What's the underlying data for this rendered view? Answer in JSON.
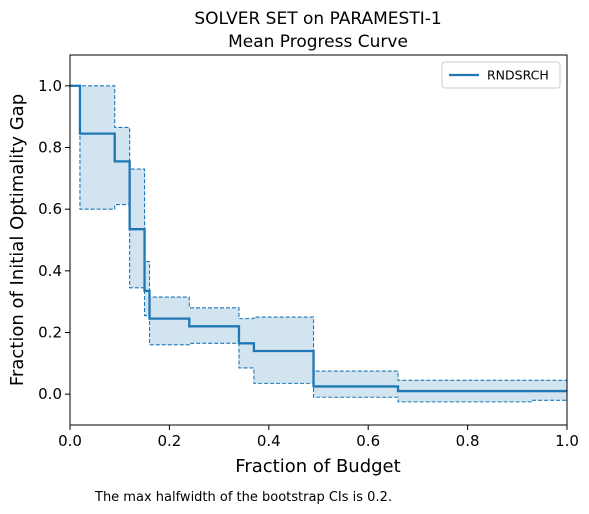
{
  "chart_data": {
    "type": "line",
    "title": "SOLVER SET on PARAMESTI-1",
    "subtitle": "Mean Progress Curve",
    "xlabel": "Fraction of Budget",
    "ylabel": "Fraction of Initial Optimality Gap",
    "xlim": [
      0.0,
      1.0
    ],
    "ylim": [
      -0.1,
      1.1
    ],
    "xticks": [
      0.0,
      0.2,
      0.4,
      0.6,
      0.8,
      1.0
    ],
    "xtick_labels": [
      "0.0",
      "0.2",
      "0.4",
      "0.6",
      "0.8",
      "1.0"
    ],
    "yticks": [
      0.0,
      0.2,
      0.4,
      0.6,
      0.8,
      1.0
    ],
    "ytick_labels": [
      "0.0",
      "0.2",
      "0.4",
      "0.6",
      "0.8",
      "1.0"
    ],
    "grid": false,
    "legend_position": "top-right",
    "step": "post",
    "series": [
      {
        "name": "RNDSRCH",
        "color": "#1f77b4",
        "x": [
          0.0,
          0.02,
          0.09,
          0.12,
          0.15,
          0.16,
          0.24,
          0.34,
          0.37,
          0.49,
          0.66,
          1.0
        ],
        "y": [
          1.0,
          0.845,
          0.755,
          0.535,
          0.335,
          0.245,
          0.22,
          0.165,
          0.14,
          0.025,
          0.01,
          0.01
        ],
        "ci_x": [
          0.0,
          0.02,
          0.09,
          0.12,
          0.15,
          0.16,
          0.24,
          0.34,
          0.37,
          0.49,
          0.66,
          0.93,
          1.0
        ],
        "ci_upper": [
          1.0,
          1.0,
          0.865,
          0.73,
          0.43,
          0.315,
          0.28,
          0.245,
          0.25,
          0.075,
          0.045,
          0.045,
          0.045
        ],
        "ci_lower": [
          1.0,
          0.6,
          0.615,
          0.345,
          0.255,
          0.16,
          0.165,
          0.085,
          0.035,
          -0.01,
          -0.025,
          -0.02,
          -0.02
        ]
      }
    ]
  },
  "footnote": "The max halfwidth of the bootstrap CIs is 0.2."
}
